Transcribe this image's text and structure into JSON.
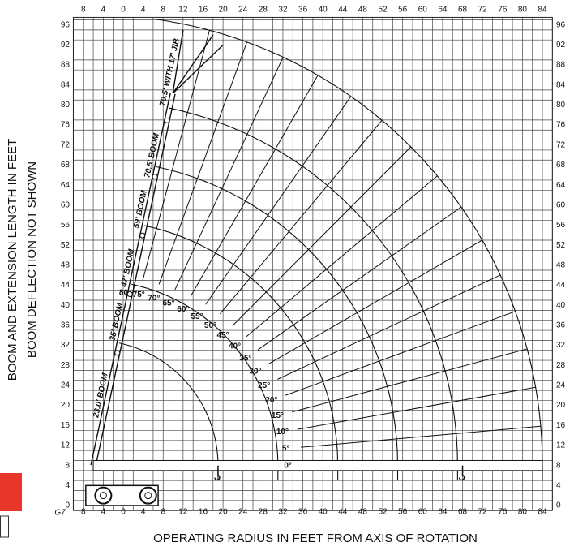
{
  "x_axis": {
    "title": "OPERATING RADIUS IN FEET FROM AXIS OF ROTATION",
    "labels": [
      "8",
      "4",
      "0",
      "4",
      "8",
      "12",
      "16",
      "20",
      "24",
      "28",
      "32",
      "36",
      "40",
      "44",
      "48",
      "52",
      "56",
      "60",
      "64",
      "68",
      "72",
      "76",
      "80",
      "84"
    ]
  },
  "y_axis": {
    "title": [
      "BOOM AND EXTENSION LENGTH IN FEET",
      "BOOM DEFLECTION NOT SHOWN"
    ],
    "labels": [
      "0",
      "4",
      "8",
      "12",
      "16",
      "20",
      "24",
      "28",
      "32",
      "36",
      "40",
      "44",
      "48",
      "52",
      "56",
      "60",
      "64",
      "68",
      "72",
      "76",
      "80",
      "84",
      "88",
      "92",
      "96"
    ]
  },
  "boom_labels": [
    "23.0' BOOM",
    "35' BOOM",
    "47' BOOM",
    "59' BOOM",
    "70.5' BOOM",
    "70.5' WITH 17' JIB"
  ],
  "angle_labels": [
    "0°",
    "5°",
    "10°",
    "15°",
    "20°",
    "25°",
    "30°",
    "35°",
    "40°",
    "45°",
    "50°",
    "55°",
    "60°",
    "65°",
    "70°",
    "75°",
    "80"
  ],
  "corner_label": "G7"
}
